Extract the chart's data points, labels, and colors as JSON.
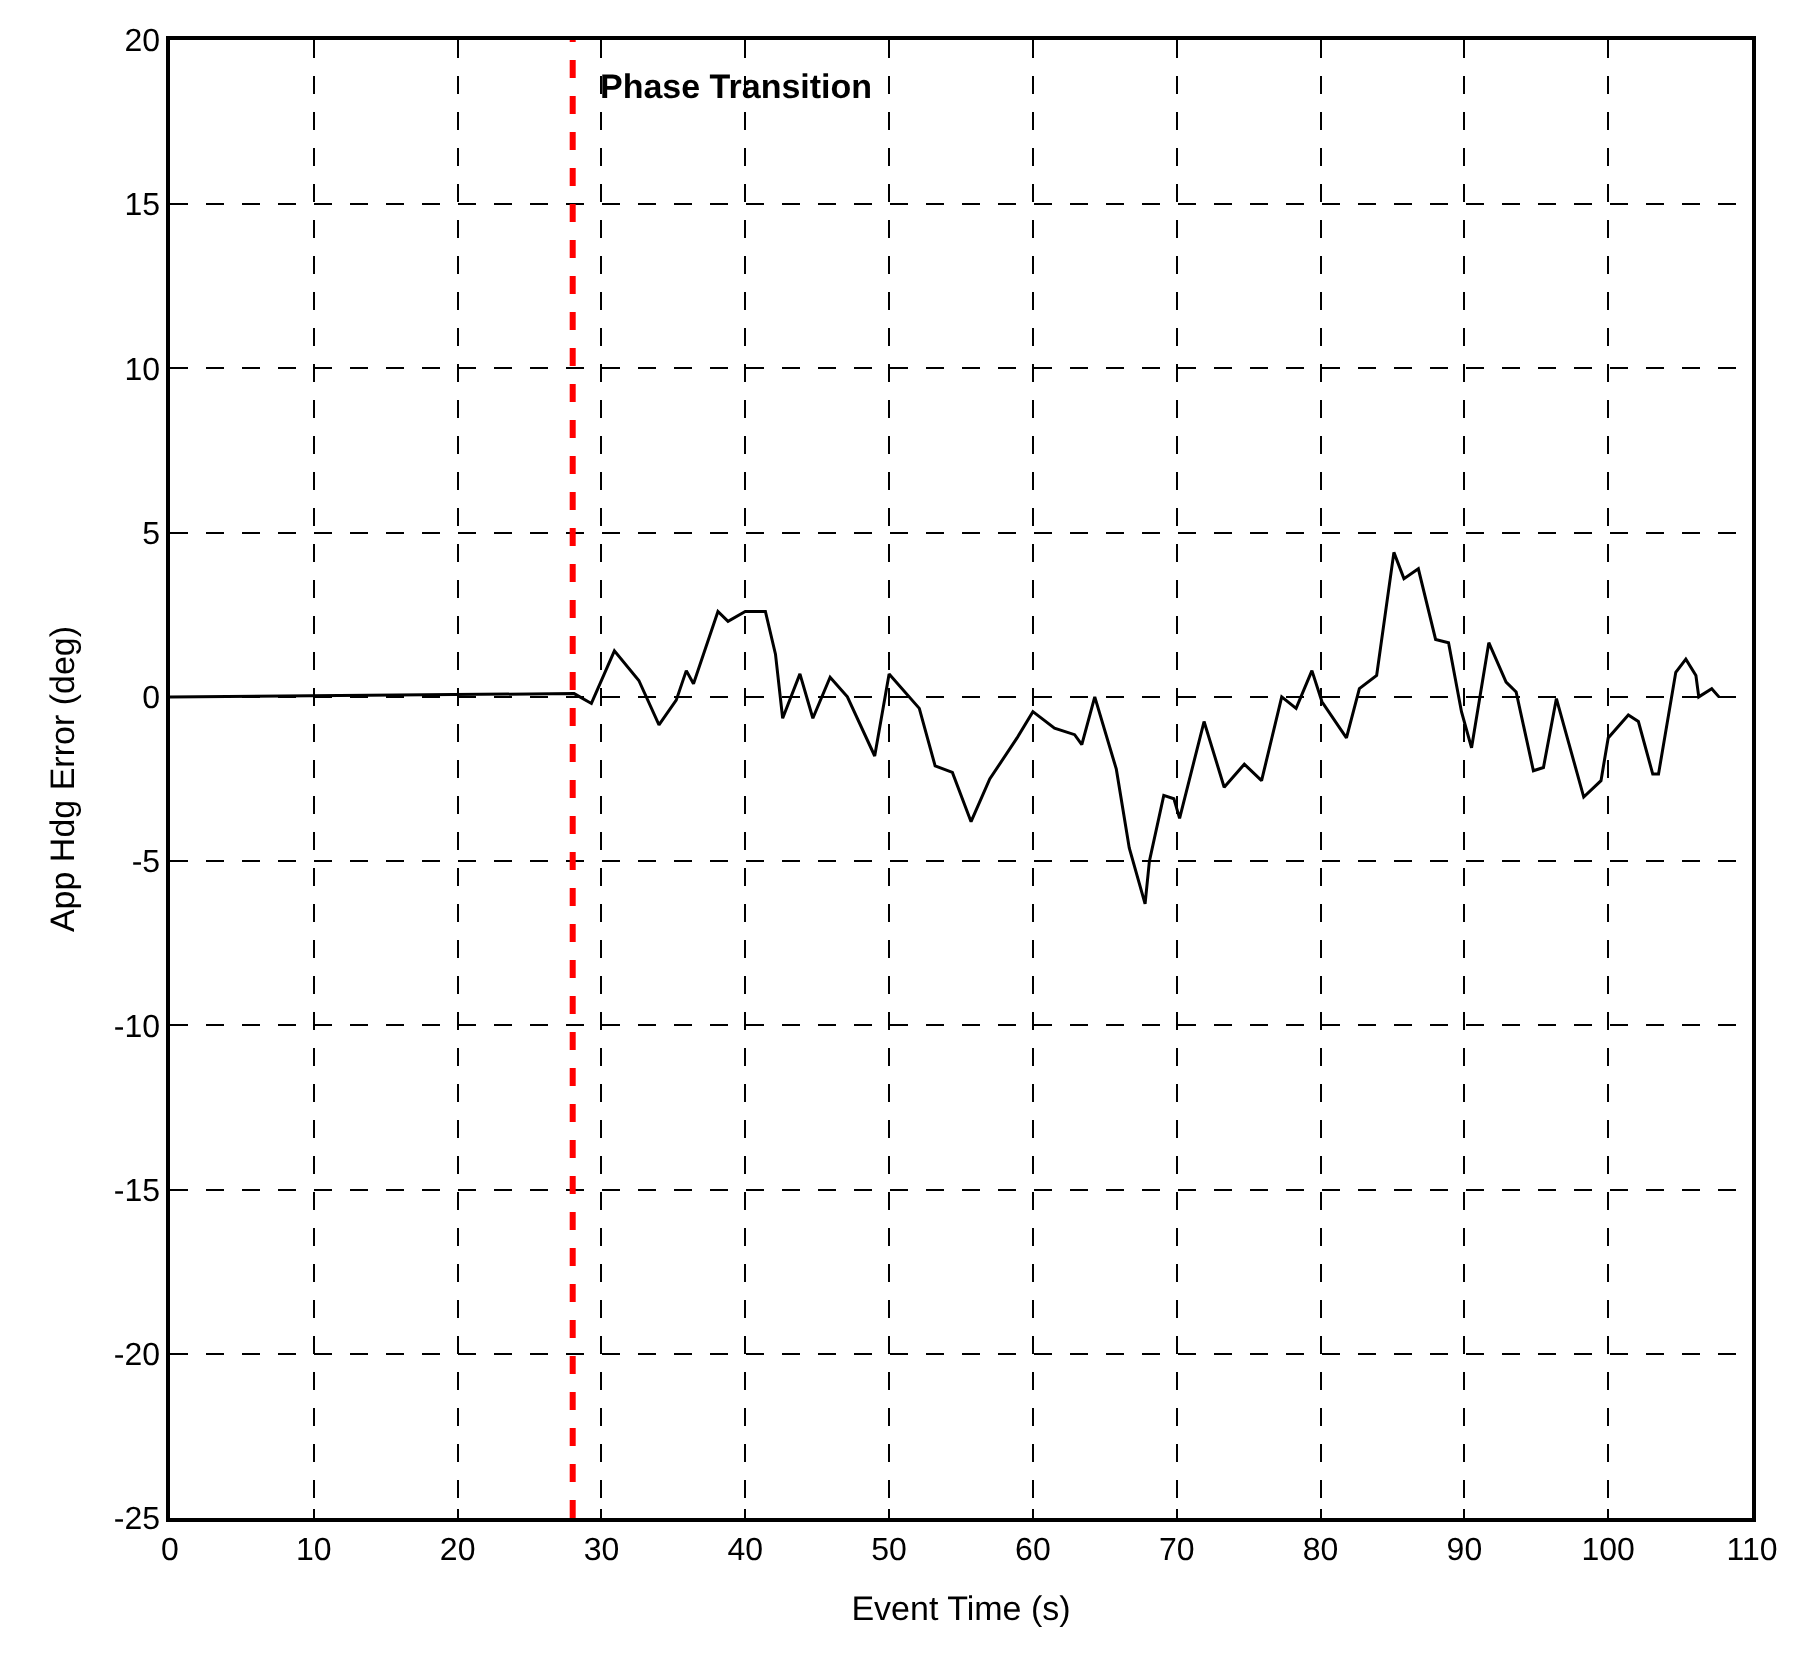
{
  "chart_data": {
    "type": "line",
    "xlabel": "Event Time (s)",
    "ylabel": "App Hdg Error (deg)",
    "xlim": [
      0,
      110
    ],
    "ylim": [
      -25,
      20
    ],
    "xticks": [
      0,
      10,
      20,
      30,
      40,
      50,
      60,
      70,
      80,
      90,
      100,
      110
    ],
    "yticks": [
      -25,
      -20,
      -15,
      -10,
      -5,
      0,
      5,
      10,
      15,
      20
    ],
    "grid": true,
    "series": [
      {
        "color": "#000000",
        "x": [
          0,
          28.1,
          29.3,
          30,
          30.9,
          32.6,
          34,
          35.2,
          35.9,
          36.4,
          38.1,
          38.8,
          40,
          41.4,
          42.1,
          42.6,
          43.8,
          44.7,
          45.9,
          47.1,
          49,
          50,
          52.1,
          53.2,
          54.4,
          55.7,
          57,
          58.9,
          60,
          61.5,
          62.9,
          63.4,
          64.3,
          65.8,
          66.7,
          67.8,
          68.1,
          69.1,
          69.8,
          70.2,
          71.9,
          73.3,
          74.7,
          75.9,
          77.3,
          78.3,
          79.4,
          80.1,
          81.8,
          82.7,
          83.9,
          85.1,
          85.8,
          86.8,
          88,
          88.9,
          89.8,
          90.5,
          91.7,
          92.9,
          93.6,
          94.8,
          95.5,
          96.4,
          98.3,
          99.5,
          100,
          101.4,
          102.1,
          103.1,
          103.5,
          104.7,
          105.4,
          106.1,
          106.3,
          107.2,
          107.7
        ],
        "values": [
          0,
          0.1,
          -0.2,
          0.5,
          1.4,
          0.5,
          -0.85,
          -0.1,
          0.8,
          0.4,
          2.6,
          2.3,
          2.6,
          2.6,
          1.3,
          -0.65,
          0.7,
          -0.65,
          0.6,
          0,
          -1.8,
          0.7,
          -0.35,
          -2.1,
          -2.3,
          -3.8,
          -2.5,
          -1.25,
          -0.45,
          -0.95,
          -1.15,
          -1.45,
          0,
          -2.2,
          -4.6,
          -6.3,
          -5,
          -3,
          -3.1,
          -3.7,
          -0.75,
          -2.75,
          -2.05,
          -2.55,
          0,
          -0.35,
          0.8,
          -0.15,
          -1.25,
          0.25,
          0.65,
          4.4,
          3.6,
          3.9,
          1.75,
          1.65,
          -0.45,
          -1.55,
          1.65,
          0.45,
          0.15,
          -2.25,
          -2.15,
          -0.05,
          -3.05,
          -2.55,
          -1.25,
          -0.55,
          -0.75,
          -2.35,
          -2.35,
          0.75,
          1.15,
          0.65,
          0,
          0.25,
          0
        ]
      }
    ],
    "ref_lines": [
      {
        "axis": "x",
        "value": 28,
        "label": "Phase Transition",
        "color": "#ff0000",
        "line_style": "dashed"
      }
    ]
  }
}
